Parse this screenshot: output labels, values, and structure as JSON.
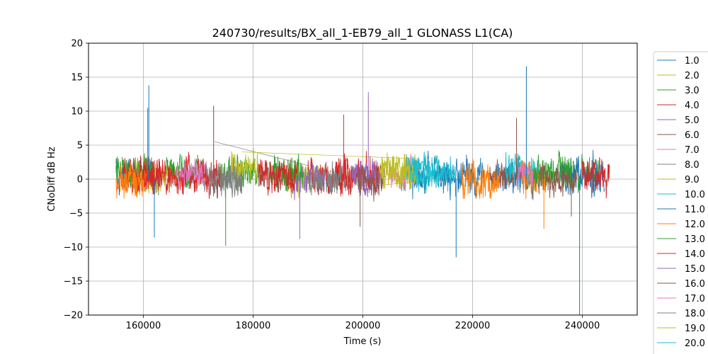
{
  "chart_data": {
    "type": "line",
    "title": "240730/results/BX_all_1-EB79_all_1 GLONASS L1(CA)",
    "xlabel": "Time (s)",
    "ylabel": "CNoDiff dB Hz",
    "xlim": [
      150000,
      250000
    ],
    "ylim": [
      -20,
      20
    ],
    "xticks": [
      160000,
      180000,
      200000,
      220000,
      240000
    ],
    "xtick_labels": [
      "160000",
      "180000",
      "200000",
      "220000",
      "240000"
    ],
    "yticks": [
      20,
      15,
      10,
      5,
      0,
      -5,
      -10,
      -15,
      -20
    ],
    "ytick_labels": [
      "20",
      "15",
      "10",
      "5",
      "0",
      "−5",
      "−10",
      "−15",
      "−20"
    ],
    "grid": true,
    "legend_placement": "right, outside plot",
    "series": [
      {
        "name": "1.0",
        "color": "#1f77b4",
        "segments": [
          [
            155000,
            163000
          ],
          [
            207000,
            212000
          ],
          [
            224000,
            231000
          ]
        ],
        "center": 0.5,
        "amp": 3.0
      },
      {
        "name": "2.0",
        "color": "#bcbd22",
        "segments": [
          [
            158000,
            166000
          ],
          [
            186000,
            193000
          ]
        ],
        "center": 0.2,
        "amp": 2.5
      },
      {
        "name": "3.0",
        "color": "#2ca02c",
        "segments": [
          [
            155000,
            162000
          ],
          [
            174000,
            181000
          ],
          [
            236000,
            243000
          ]
        ],
        "center": 1.0,
        "amp": 2.8
      },
      {
        "name": "4.0",
        "color": "#d62728",
        "segments": [
          [
            156000,
            163000
          ],
          [
            190000,
            197000
          ]
        ],
        "center": 0.5,
        "amp": 2.8
      },
      {
        "name": "5.0",
        "color": "#9467bd",
        "segments": [
          [
            187000,
            193000
          ],
          [
            199000,
            203000
          ]
        ],
        "center": 0.0,
        "amp": 3.0
      },
      {
        "name": "6.0",
        "color": "#8c564b",
        "segments": [
          [
            181000,
            187000
          ],
          [
            223000,
            230000
          ]
        ],
        "center": 0.5,
        "amp": 2.5
      },
      {
        "name": "7.0",
        "color": "#e377c2",
        "segments": [
          [
            167000,
            172000
          ],
          [
            205000,
            210000
          ]
        ],
        "center": 0.8,
        "amp": 2.5
      },
      {
        "name": "8.0",
        "color": "#7f7f7f",
        "segments": [
          [
            171000,
            178000
          ],
          [
            194000,
            200000
          ]
        ],
        "center": 0.0,
        "amp": 2.5
      },
      {
        "name": "9.0",
        "color": "#bcbd22",
        "segments": [
          [
            176000,
            181000
          ],
          [
            203000,
            210000
          ]
        ],
        "center": 1.5,
        "amp": 2.5
      },
      {
        "name": "10.0",
        "color": "#17becf",
        "segments": [
          [
            208000,
            216000
          ],
          [
            226000,
            232000
          ]
        ],
        "center": 1.5,
        "amp": 2.5
      },
      {
        "name": "11.0",
        "color": "#1f77b4",
        "segments": [
          [
            213000,
            222000
          ],
          [
            236000,
            244000
          ]
        ],
        "center": 0.5,
        "amp": 3.0
      },
      {
        "name": "12.0",
        "color": "#ff7f0e",
        "segments": [
          [
            155000,
            161000
          ],
          [
            218000,
            225000
          ],
          [
            229000,
            234000
          ]
        ],
        "center": 0.0,
        "amp": 3.0
      },
      {
        "name": "13.0",
        "color": "#2ca02c",
        "segments": [
          [
            164000,
            171000
          ],
          [
            183000,
            189000
          ],
          [
            231000,
            238000
          ]
        ],
        "center": 1.0,
        "amp": 2.8
      },
      {
        "name": "14.0",
        "color": "#d62728",
        "segments": [
          [
            160000,
            174000
          ],
          [
            181000,
            188000
          ],
          [
            195000,
            203000
          ],
          [
            240000,
            245000
          ]
        ],
        "center": 0.5,
        "amp": 3.0
      },
      {
        "name": "15.0",
        "color": "#9467bd",
        "segments": [
          [
            198000,
            203000
          ]
        ],
        "center": 0.5,
        "amp": 2.5
      },
      {
        "name": "16.0",
        "color": "#8c564b",
        "segments": [
          [
            199000,
            204000
          ],
          [
            232000,
            239000
          ]
        ],
        "center": 0.0,
        "amp": 2.5
      },
      {
        "name": "17.0",
        "color": "#e377c2",
        "segments": [
          [
            166000,
            171000
          ],
          [
            228000,
            231000
          ]
        ],
        "center": 1.0,
        "amp": 2.0
      },
      {
        "name": "18.0",
        "color": "#7f7f7f",
        "segments": [
          [
            172000,
            178000
          ],
          [
            190000,
            196000
          ]
        ],
        "center": 0.0,
        "amp": 2.5
      },
      {
        "name": "19.0",
        "color": "#bcbd22",
        "segments": [
          [
            203000,
            210000
          ]
        ],
        "center": 1.0,
        "amp": 2.5
      },
      {
        "name": "20.0",
        "color": "#17becf",
        "segments": [
          [
            209000,
            217000
          ]
        ],
        "center": 0.5,
        "amp": 2.5
      }
    ],
    "spikes": [
      {
        "x": 161000,
        "y": 13.8,
        "color": "#1f77b4"
      },
      {
        "x": 160800,
        "y": 10.5,
        "color": "#1f77b4"
      },
      {
        "x": 162000,
        "y": -8.6,
        "color": "#1f77b4"
      },
      {
        "x": 172800,
        "y": 10.8,
        "color": "#d62728"
      },
      {
        "x": 175000,
        "y": -9.8,
        "color": "#2ca02c"
      },
      {
        "x": 188500,
        "y": -8.8,
        "color": "#9467bd"
      },
      {
        "x": 196500,
        "y": 9.5,
        "color": "#d62728"
      },
      {
        "x": 201000,
        "y": 12.8,
        "color": "#9467bd"
      },
      {
        "x": 199500,
        "y": -7.0,
        "color": "#8c564b"
      },
      {
        "x": 217000,
        "y": -11.5,
        "color": "#1f77b4"
      },
      {
        "x": 229800,
        "y": 16.6,
        "color": "#1f77b4"
      },
      {
        "x": 228000,
        "y": 9.0,
        "color": "#8c564b"
      },
      {
        "x": 233000,
        "y": -7.3,
        "color": "#ff7f0e"
      },
      {
        "x": 239500,
        "y": -20.0,
        "color": "#1f77b4"
      },
      {
        "x": 238000,
        "y": -5.5,
        "color": "#8c564b"
      }
    ],
    "trend_lines": [
      {
        "color": "#7f7f7f",
        "points": [
          [
            173000,
            5.5
          ],
          [
            190000,
            2.0
          ]
        ]
      },
      {
        "color": "#bcbd22",
        "points": [
          [
            186000,
            -0.5
          ],
          [
            204000,
            -1.0
          ]
        ]
      },
      {
        "color": "#ff7f0e",
        "points": [
          [
            204000,
            -0.8
          ],
          [
            232000,
            0.8
          ]
        ]
      },
      {
        "color": "#bcbd22",
        "points": [
          [
            178000,
            4.0
          ],
          [
            210000,
            3.0
          ]
        ]
      }
    ]
  }
}
